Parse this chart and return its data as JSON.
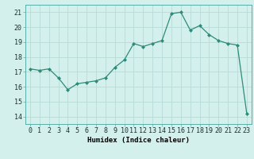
{
  "x": [
    0,
    1,
    2,
    3,
    4,
    5,
    6,
    7,
    8,
    9,
    10,
    11,
    12,
    13,
    14,
    15,
    16,
    17,
    18,
    19,
    20,
    21,
    22,
    23
  ],
  "y": [
    17.2,
    17.1,
    17.2,
    16.6,
    15.8,
    16.2,
    16.3,
    16.4,
    16.6,
    17.3,
    17.8,
    18.9,
    18.7,
    18.9,
    19.1,
    20.9,
    21.0,
    19.8,
    20.1,
    19.5,
    19.1,
    18.9,
    18.8,
    14.2
  ],
  "line_color": "#2e8b7a",
  "marker_color": "#2e8b7a",
  "bg_color": "#d4f0ec",
  "grid_color": "#b8dbd8",
  "xlabel": "Humidex (Indice chaleur)",
  "ylim": [
    13.5,
    21.5
  ],
  "xlim": [
    -0.5,
    23.5
  ],
  "yticks": [
    14,
    15,
    16,
    17,
    18,
    19,
    20,
    21
  ],
  "xticks": [
    0,
    1,
    2,
    3,
    4,
    5,
    6,
    7,
    8,
    9,
    10,
    11,
    12,
    13,
    14,
    15,
    16,
    17,
    18,
    19,
    20,
    21,
    22,
    23
  ],
  "xlabel_fontsize": 6.5,
  "tick_fontsize": 6.0,
  "spine_color": "#5aadaa"
}
